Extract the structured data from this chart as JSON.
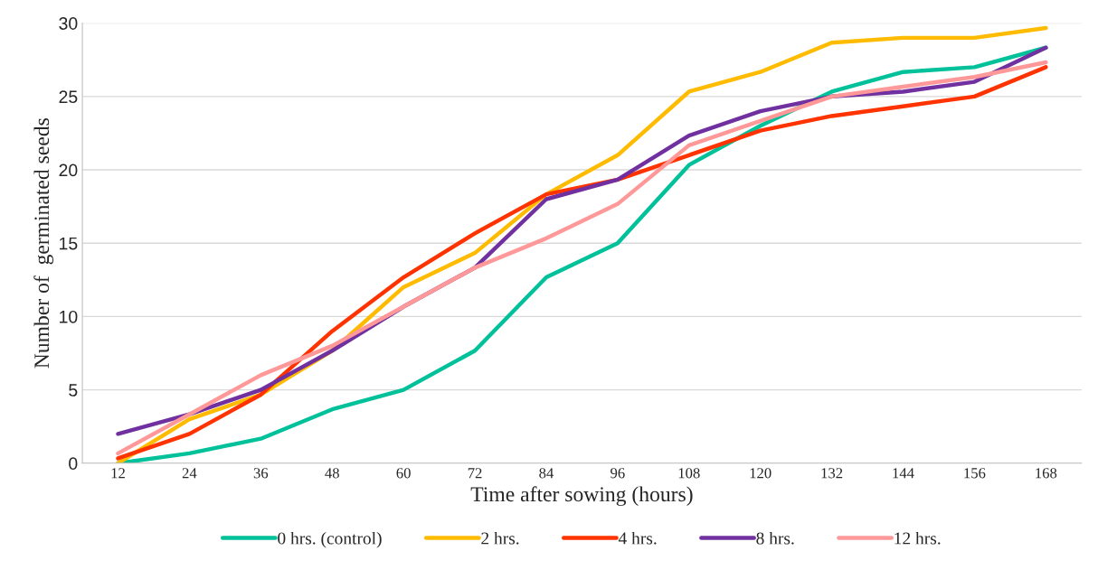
{
  "chart_data": {
    "type": "line",
    "xlabel": "Time after sowing (hours)",
    "ylabel": "Number of  germinated seeds",
    "categories": [
      "12",
      "24",
      "36",
      "48",
      "60",
      "72",
      "84",
      "96",
      "108",
      "120",
      "132",
      "144",
      "156",
      "168"
    ],
    "series": [
      {
        "name": "0 hrs. (control)",
        "color": "#00c19a",
        "values": [
          0,
          0.67,
          1.67,
          3.67,
          5,
          7.67,
          12.67,
          15,
          20.33,
          23,
          25.33,
          26.67,
          27,
          28.33
        ]
      },
      {
        "name": "2 hrs.",
        "color": "#ffbb00",
        "values": [
          0,
          3,
          4.67,
          7.67,
          12,
          14.33,
          18.33,
          21,
          25.33,
          26.67,
          28.67,
          29,
          29,
          29.67
        ]
      },
      {
        "name": "4 hrs.",
        "color": "#ff3300",
        "values": [
          0.33,
          2,
          4.67,
          9,
          12.67,
          15.67,
          18.33,
          19.33,
          21,
          22.67,
          23.67,
          24.33,
          25,
          27
        ]
      },
      {
        "name": "8 hrs.",
        "color": "#7030a0",
        "values": [
          2,
          3.33,
          5,
          7.67,
          10.67,
          13.33,
          18,
          19.33,
          22.33,
          24,
          25,
          25.33,
          26,
          28.33
        ]
      },
      {
        "name": "12 hrs.",
        "color": "#ff9999",
        "values": [
          0.67,
          3.33,
          6,
          8,
          10.67,
          13.33,
          15.33,
          17.67,
          21.67,
          23.33,
          25,
          25.67,
          26.33,
          27.33
        ]
      }
    ],
    "ylim": [
      0,
      30
    ],
    "yticks": [
      0,
      5,
      10,
      15,
      20,
      25,
      30
    ],
    "grid": "y",
    "legend": "bottom",
    "marker": "none",
    "line_style": "solid"
  }
}
